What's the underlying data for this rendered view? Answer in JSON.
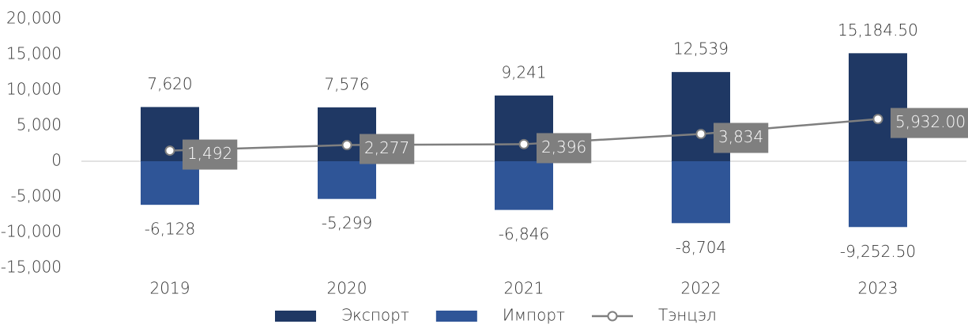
{
  "chart_data": {
    "type": "bar",
    "categories": [
      "2019",
      "2020",
      "2021",
      "2022",
      "2023"
    ],
    "series": [
      {
        "name": "Экспорт",
        "type": "bar",
        "color": "#1f3864",
        "values": [
          7620,
          7576,
          9241,
          12539,
          15184.5
        ],
        "value_labels": [
          "7,620",
          "7,576",
          "9,241",
          "12,539",
          "15,184.50"
        ]
      },
      {
        "name": "Импорт",
        "type": "bar",
        "color": "#2f5597",
        "values": [
          -6128,
          -5299,
          -6846,
          -8704,
          -9252.5
        ],
        "value_labels": [
          "-6,128",
          "-5,299",
          "-6,846",
          "-8,704",
          "-9,252.50"
        ]
      },
      {
        "name": "Тэнцэл",
        "type": "line",
        "color": "#7f7f7f",
        "values": [
          1492,
          2277,
          2396,
          3834,
          5932
        ],
        "value_labels": [
          "1,492",
          "2,277",
          "2,396",
          "3,834",
          "5,932.00"
        ]
      }
    ],
    "ylim": [
      -15000,
      20000
    ],
    "yticks": [
      {
        "value": 20000,
        "label": "20,000"
      },
      {
        "value": 15000,
        "label": "15,000"
      },
      {
        "value": 10000,
        "label": "10,000"
      },
      {
        "value": 5000,
        "label": "5,000"
      },
      0,
      {
        "value": -5000,
        "label": "-5,000"
      },
      {
        "value": -10000,
        "label": "-10,000"
      },
      {
        "value": -15000,
        "label": "-15,000"
      }
    ],
    "grid": false,
    "legend": "bottom"
  }
}
